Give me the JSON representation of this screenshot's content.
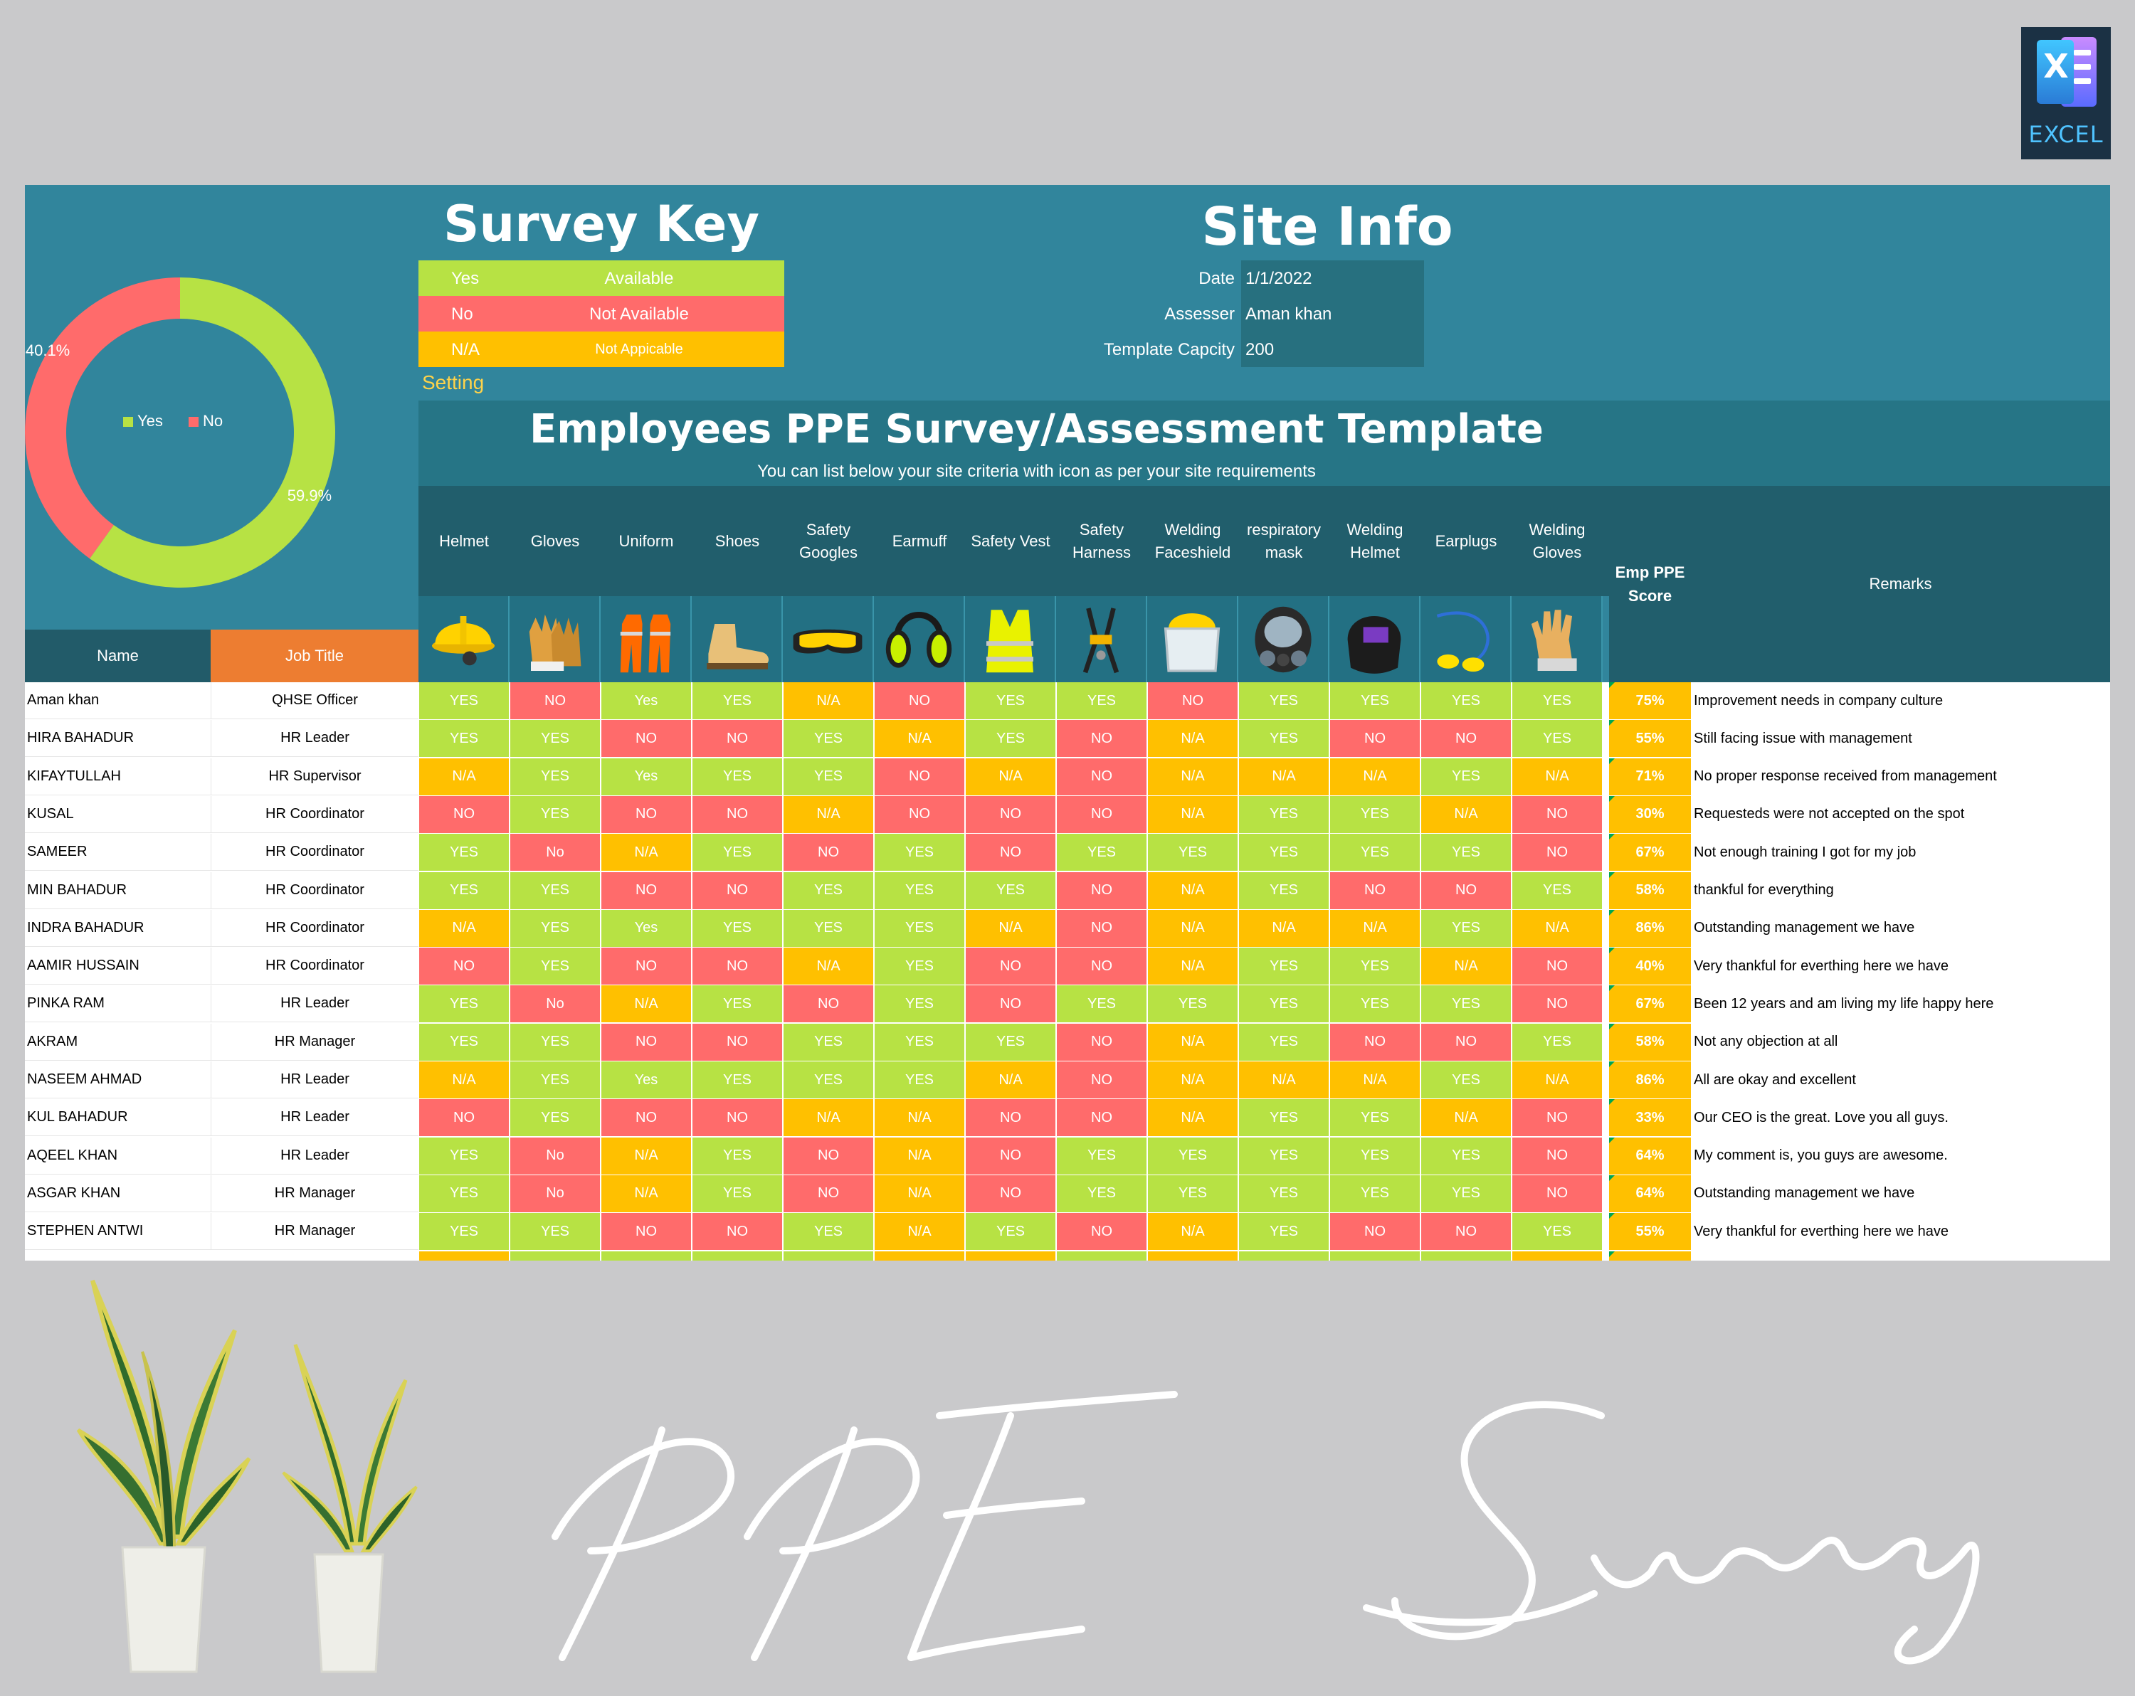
{
  "badge": {
    "label": "EXCEL",
    "glyph": "X"
  },
  "survey_key": {
    "title": "Survey Key",
    "rows": [
      {
        "key": "Yes",
        "meaning": "Available",
        "color": "#b7e244"
      },
      {
        "key": "No",
        "meaning": "Not Available",
        "color": "#ff6b6b"
      },
      {
        "key": "N/A",
        "meaning": "Not Appicable",
        "color": "#ffc000"
      }
    ],
    "setting_label": "Setting"
  },
  "site_info": {
    "title": "Site Info",
    "rows": [
      {
        "label": "Date",
        "value": "1/1/2022"
      },
      {
        "label": "Assesser",
        "value": "Aman khan"
      },
      {
        "label": "Template Capcity",
        "value": "200"
      }
    ]
  },
  "chart_data": {
    "type": "pie",
    "labels": [
      "Yes",
      "No"
    ],
    "values": [
      59.9,
      40.1
    ],
    "data_labels": [
      "59.9%",
      "40.1%"
    ],
    "colors": [
      "#b7e244",
      "#ff6b6b"
    ],
    "legend": "center"
  },
  "heading": {
    "title": "Employees PPE Survey/Assessment Template",
    "subtitle": "You can list below your site criteria with icon as per your site requirements"
  },
  "columns": {
    "name": "Name",
    "job": "Job Title",
    "score": "Emp PPE Score",
    "remarks": "Remarks",
    "ppe": [
      {
        "label": "Helmet",
        "icon": "yellow-helmet-icon"
      },
      {
        "label": "Gloves",
        "icon": "leather-gloves-icon"
      },
      {
        "label": "Uniform",
        "icon": "orange-coverall-icon"
      },
      {
        "label": "Shoes",
        "icon": "safety-boot-icon"
      },
      {
        "label": "Safety Googles",
        "icon": "safety-goggles-icon"
      },
      {
        "label": "Earmuff",
        "icon": "earmuff-icon"
      },
      {
        "label": "Safety Vest",
        "icon": "hi-vis-vest-icon"
      },
      {
        "label": "Safety Harness",
        "icon": "safety-harness-icon"
      },
      {
        "label": "Welding Faceshield",
        "icon": "faceshield-icon"
      },
      {
        "label": "respiratory mask",
        "icon": "respirator-mask-icon"
      },
      {
        "label": "Welding Helmet",
        "icon": "welding-helmet-icon"
      },
      {
        "label": "Earplugs",
        "icon": "earplugs-icon"
      },
      {
        "label": "Welding Gloves",
        "icon": "welding-gloves-icon"
      }
    ]
  },
  "rows": [
    {
      "name": "Aman khan",
      "job": "QHSE Officer",
      "answers": [
        "YES",
        "NO",
        "Yes",
        "YES",
        "N/A",
        "NO",
        "YES",
        "YES",
        "NO",
        "YES",
        "YES",
        "YES",
        "YES"
      ],
      "score": "75%",
      "remark": "Improvement needs in company culture"
    },
    {
      "name": "HIRA BAHADUR",
      "job": "HR Leader",
      "answers": [
        "YES",
        "YES",
        "NO",
        "NO",
        "YES",
        "N/A",
        "YES",
        "NO",
        "N/A",
        "YES",
        "NO",
        "NO",
        "YES"
      ],
      "score": "55%",
      "remark": "Still facing issue with management"
    },
    {
      "name": "KIFAYTULLAH",
      "job": "HR Supervisor",
      "answers": [
        "N/A",
        "YES",
        "Yes",
        "YES",
        "YES",
        "NO",
        "N/A",
        "NO",
        "N/A",
        "N/A",
        "N/A",
        "YES",
        "N/A"
      ],
      "score": "71%",
      "remark": "No proper response received from management"
    },
    {
      "name": "KUSAL",
      "job": "HR Coordinator",
      "answers": [
        "NO",
        "YES",
        "NO",
        "NO",
        "N/A",
        "NO",
        "NO",
        "NO",
        "N/A",
        "YES",
        "YES",
        "N/A",
        "NO"
      ],
      "score": "30%",
      "remark": "Requesteds were not accepted on the spot"
    },
    {
      "name": "SAMEER",
      "job": "HR Coordinator",
      "answers": [
        "YES",
        "No",
        "N/A",
        "YES",
        "NO",
        "YES",
        "NO",
        "YES",
        "YES",
        "YES",
        "YES",
        "YES",
        "NO"
      ],
      "score": "67%",
      "remark": "Not enough training I got for my job"
    },
    {
      "name": "MIN BAHADUR",
      "job": "HR Coordinator",
      "answers": [
        "YES",
        "YES",
        "NO",
        "NO",
        "YES",
        "YES",
        "YES",
        "NO",
        "N/A",
        "YES",
        "NO",
        "NO",
        "YES"
      ],
      "score": "58%",
      "remark": "thankful for everything"
    },
    {
      "name": "INDRA BAHADUR",
      "job": "HR Coordinator",
      "answers": [
        "N/A",
        "YES",
        "Yes",
        "YES",
        "YES",
        "YES",
        "N/A",
        "NO",
        "N/A",
        "N/A",
        "N/A",
        "YES",
        "N/A"
      ],
      "score": "86%",
      "remark": "Outstanding management we have"
    },
    {
      "name": "AAMIR HUSSAIN",
      "job": "HR Coordinator",
      "answers": [
        "NO",
        "YES",
        "NO",
        "NO",
        "N/A",
        "YES",
        "NO",
        "NO",
        "N/A",
        "YES",
        "YES",
        "N/A",
        "NO"
      ],
      "score": "40%",
      "remark": "Very thankful for everthing here we have"
    },
    {
      "name": "PINKA RAM",
      "job": "HR Leader",
      "answers": [
        "YES",
        "No",
        "N/A",
        "YES",
        "NO",
        "YES",
        "NO",
        "YES",
        "YES",
        "YES",
        "YES",
        "YES",
        "NO"
      ],
      "score": "67%",
      "remark": "Been 12 years and am living my life happy here"
    },
    {
      "name": "AKRAM",
      "job": "HR Manager",
      "answers": [
        "YES",
        "YES",
        "NO",
        "NO",
        "YES",
        "YES",
        "YES",
        "NO",
        "N/A",
        "YES",
        "NO",
        "NO",
        "YES"
      ],
      "score": "58%",
      "remark": "Not any objection at all"
    },
    {
      "name": "NASEEM AHMAD",
      "job": "HR Leader",
      "answers": [
        "N/A",
        "YES",
        "Yes",
        "YES",
        "YES",
        "YES",
        "N/A",
        "NO",
        "N/A",
        "N/A",
        "N/A",
        "YES",
        "N/A"
      ],
      "score": "86%",
      "remark": "All are okay and excellent"
    },
    {
      "name": "KUL BAHADUR",
      "job": "HR Leader",
      "answers": [
        "NO",
        "YES",
        "NO",
        "NO",
        "N/A",
        "N/A",
        "NO",
        "NO",
        "N/A",
        "YES",
        "YES",
        "N/A",
        "NO"
      ],
      "score": "33%",
      "remark": "Our CEO is the great. Love you all guys."
    },
    {
      "name": "AQEEL KHAN",
      "job": "HR Leader",
      "answers": [
        "YES",
        "No",
        "N/A",
        "YES",
        "NO",
        "N/A",
        "NO",
        "YES",
        "YES",
        "YES",
        "YES",
        "YES",
        "NO"
      ],
      "score": "64%",
      "remark": "My comment is, you guys are awesome."
    },
    {
      "name": "ASGAR KHAN",
      "job": "HR Manager",
      "answers": [
        "YES",
        "No",
        "N/A",
        "YES",
        "NO",
        "N/A",
        "NO",
        "YES",
        "YES",
        "YES",
        "YES",
        "YES",
        "NO"
      ],
      "score": "64%",
      "remark": "Outstanding management we have"
    },
    {
      "name": "STEPHEN ANTWI",
      "job": "HR Manager",
      "answers": [
        "YES",
        "YES",
        "NO",
        "NO",
        "YES",
        "N/A",
        "YES",
        "NO",
        "N/A",
        "YES",
        "NO",
        "NO",
        "YES"
      ],
      "score": "55%",
      "remark": "Very thankful for everthing here we have"
    }
  ],
  "partial_row_colors": [
    "na",
    "y",
    "y",
    "y",
    "y",
    "na",
    "na",
    "y",
    "na",
    "y",
    "y",
    "y",
    "na"
  ],
  "decor": {
    "signature": "PPE Survey"
  }
}
